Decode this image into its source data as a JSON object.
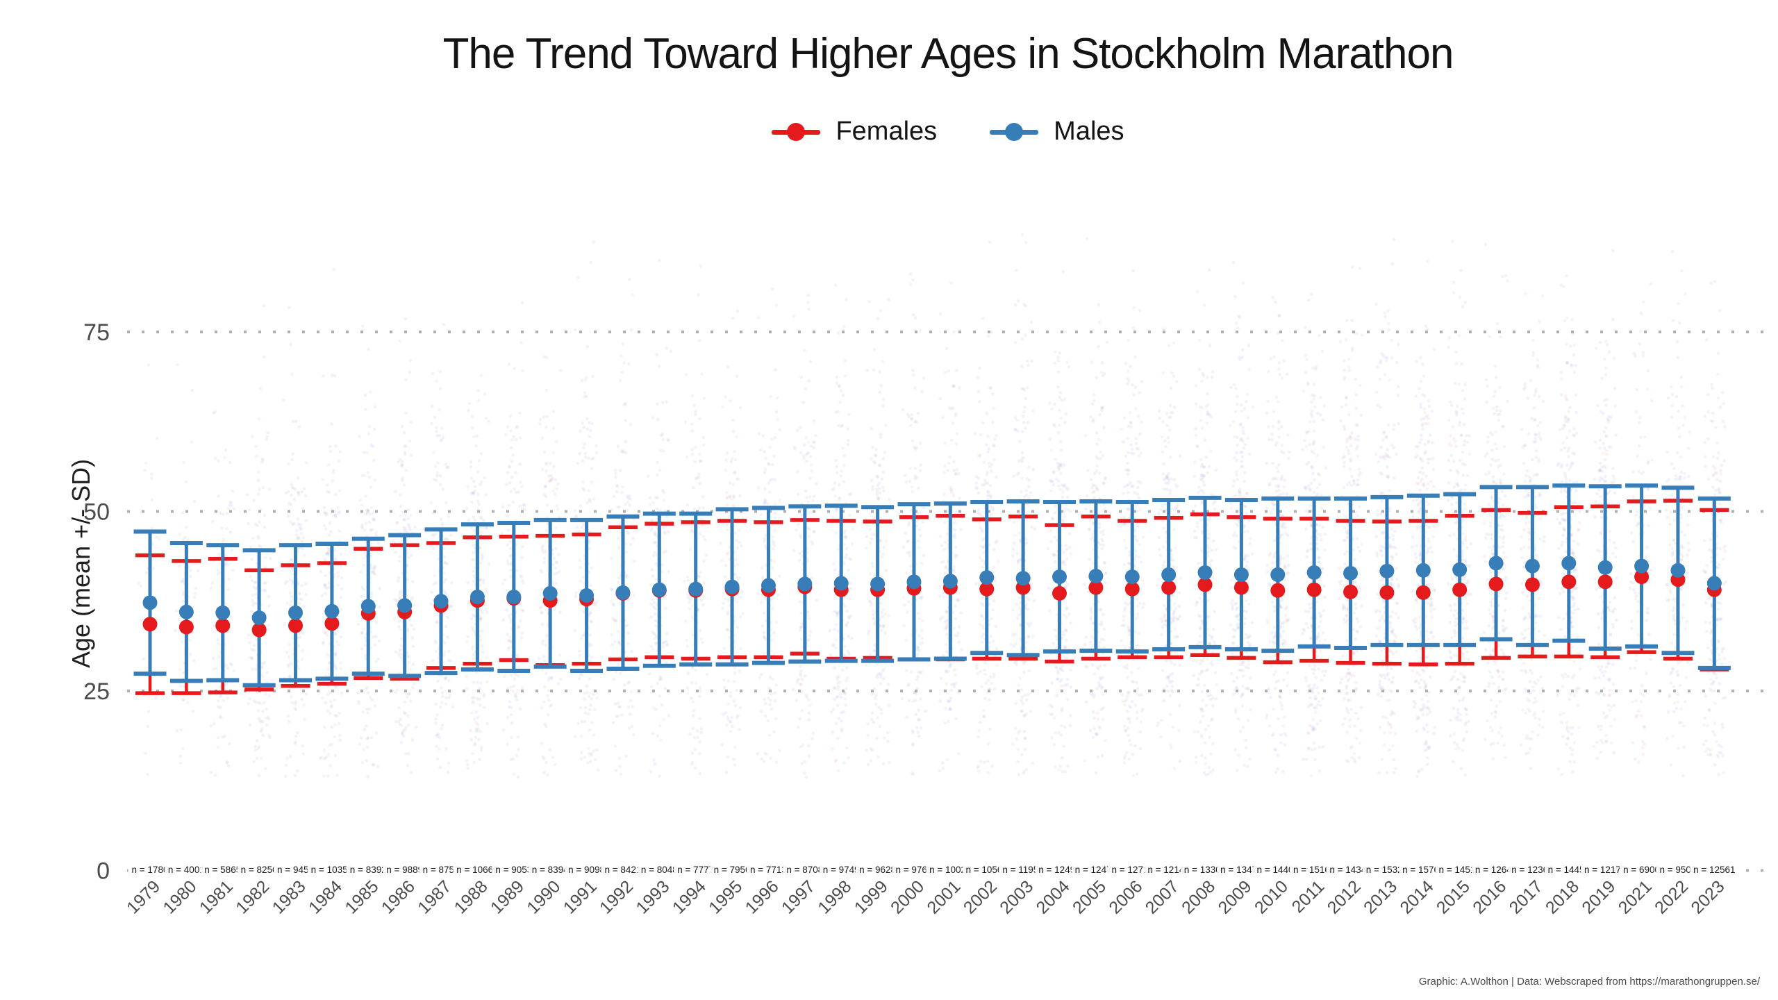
{
  "footer": {
    "text": "Graphic: A.Wolthon | Data: Webscraped from https://marathongruppen.se/"
  },
  "colors": {
    "female": "#e41a1c",
    "male": "#377eb8",
    "grid": "#b0b0b0",
    "tick_text": "#4d4d4d",
    "n_text": "#1a1a1a",
    "cloud_male": "rgba(92,110,188,0.085)",
    "cloud_female": "rgba(208,92,92,0.085)"
  },
  "chart_data": {
    "type": "errorbar-scatter",
    "title": "The Trend Toward Higher Ages in Stockholm Marathon",
    "xlabel": "",
    "ylabel": "Age (mean +/- SD)",
    "y_ticks": [
      0,
      25,
      50,
      75
    ],
    "y_tick_labels": [
      "0",
      "25",
      "50",
      "75"
    ],
    "ylim": [
      0,
      95
    ],
    "grid": "dotted horizontal lines at each y tick",
    "legend_position": "top-center",
    "n_prefix": "n = ",
    "categories": [
      "1979",
      "1980",
      "1981",
      "1982",
      "1983",
      "1984",
      "1985",
      "1986",
      "1987",
      "1988",
      "1989",
      "1990",
      "1991",
      "1992",
      "1993",
      "1994",
      "1995",
      "1996",
      "1997",
      "1998",
      "1999",
      "2000",
      "2001",
      "2002",
      "2003",
      "2004",
      "2005",
      "2006",
      "2007",
      "2008",
      "2009",
      "2010",
      "2011",
      "2012",
      "2013",
      "2014",
      "2015",
      "2016",
      "2017",
      "2018",
      "2019",
      "2021",
      "2022",
      "2023"
    ],
    "n_values": [
      1780,
      4001,
      5865,
      8250,
      9450,
      10359,
      8392,
      9889,
      8757,
      10660,
      9053,
      8394,
      9098,
      8421,
      8048,
      7777,
      7956,
      7713,
      8708,
      9749,
      9628,
      9769,
      10027,
      10563,
      11954,
      12490,
      12473,
      12711,
      12145,
      13306,
      13476,
      14403,
      15160,
      14341,
      15324,
      15760,
      14513,
      12647,
      12362,
      14451,
      12177,
      6900,
      9503,
      12561
    ],
    "series": [
      {
        "name": "Females",
        "color": "#e41a1c",
        "means": [
          34.3,
          33.9,
          34.1,
          33.5,
          34.1,
          34.4,
          35.8,
          36.0,
          36.9,
          37.6,
          37.9,
          37.6,
          37.8,
          38.6,
          39.0,
          39.0,
          39.2,
          39.1,
          39.5,
          39.1,
          39.1,
          39.3,
          39.4,
          39.2,
          39.4,
          38.6,
          39.4,
          39.2,
          39.4,
          39.8,
          39.4,
          39.0,
          39.1,
          38.8,
          38.7,
          38.7,
          39.1,
          39.9,
          39.8,
          40.2,
          40.2,
          40.9,
          40.5,
          39.1
        ],
        "sds": [
          9.6,
          9.2,
          9.3,
          8.3,
          8.4,
          8.4,
          9.0,
          9.3,
          8.7,
          8.8,
          8.6,
          9.0,
          9.0,
          9.2,
          9.3,
          9.5,
          9.5,
          9.4,
          9.3,
          9.6,
          9.5,
          9.9,
          10.0,
          9.7,
          9.9,
          9.5,
          9.9,
          9.5,
          9.7,
          9.8,
          9.8,
          10.0,
          9.9,
          9.9,
          9.9,
          10.0,
          10.3,
          10.3,
          10.0,
          10.4,
          10.5,
          10.5,
          11.0,
          11.1
        ]
      },
      {
        "name": "Males",
        "color": "#377eb8",
        "means": [
          37.3,
          36.0,
          35.9,
          35.2,
          35.9,
          36.1,
          36.8,
          36.9,
          37.5,
          38.1,
          38.1,
          38.6,
          38.3,
          38.7,
          39.1,
          39.2,
          39.5,
          39.7,
          39.9,
          40.0,
          39.9,
          40.2,
          40.3,
          40.8,
          40.7,
          40.9,
          41.0,
          40.9,
          41.2,
          41.5,
          41.2,
          41.2,
          41.5,
          41.4,
          41.7,
          41.8,
          41.9,
          42.8,
          42.4,
          42.8,
          42.2,
          42.4,
          41.8,
          40.0
        ],
        "sds": [
          9.9,
          9.6,
          9.4,
          9.4,
          9.4,
          9.4,
          9.4,
          9.8,
          10.0,
          10.1,
          10.3,
          10.2,
          10.5,
          10.6,
          10.6,
          10.5,
          10.8,
          10.8,
          10.8,
          10.8,
          10.7,
          10.8,
          10.8,
          10.5,
          10.7,
          10.4,
          10.4,
          10.4,
          10.4,
          10.4,
          10.4,
          10.6,
          10.3,
          10.4,
          10.3,
          10.4,
          10.5,
          10.6,
          11.0,
          10.8,
          11.3,
          11.2,
          11.5,
          11.8
        ]
      }
    ]
  }
}
